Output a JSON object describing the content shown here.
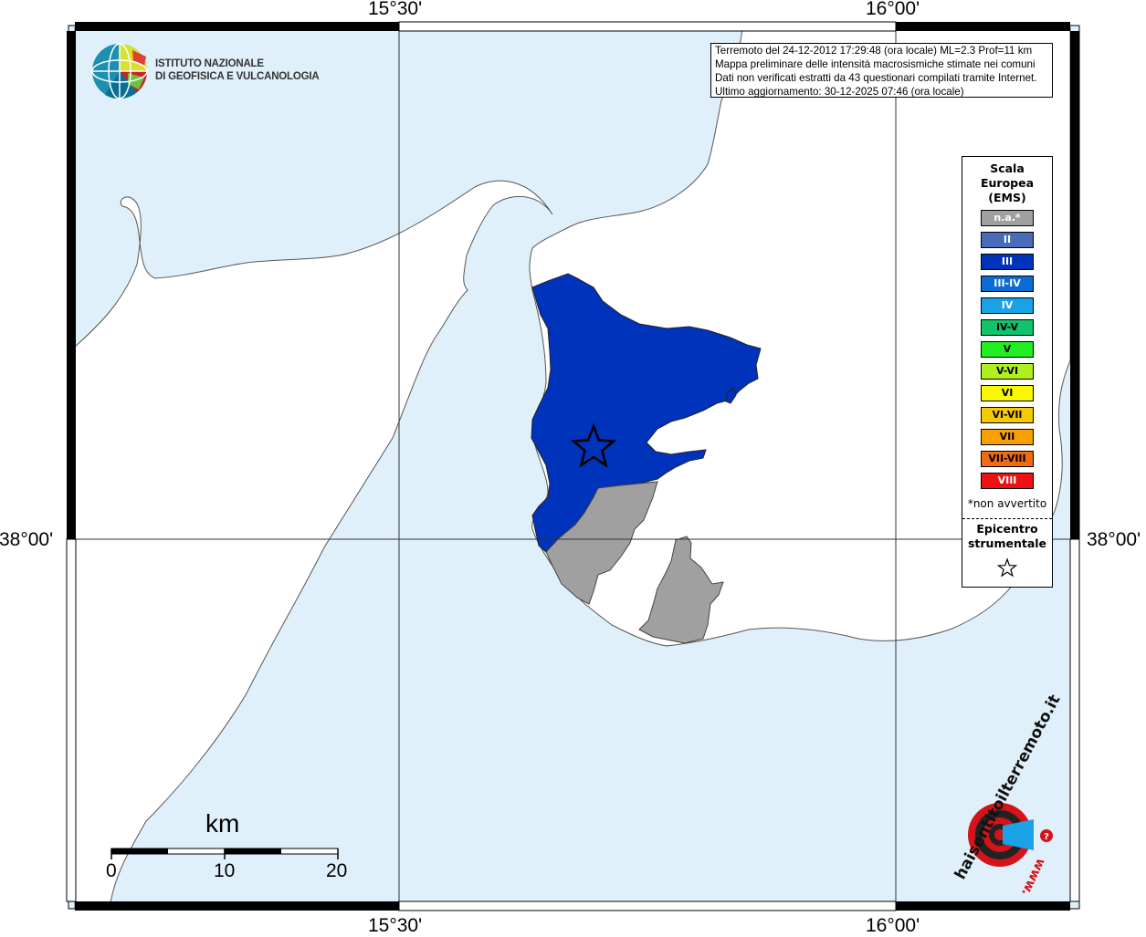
{
  "map": {
    "coords": {
      "lon_left": "15°30'",
      "lon_right": "16°00'",
      "lat": "38°00'"
    },
    "info": {
      "line1": "Terremoto del 24-12-2012 17:29:48 (ora locale) ML=2.3 Prof=11 km",
      "line2": "Mappa preliminare delle intensità macrosismiche stimate nei comuni",
      "line3": "Dati non verificati estratti da 43 questionari compilati tramite Internet.",
      "line4": "Ultimo aggiornamento: 30-12-2025 07:46 (ora locale)"
    },
    "institute": {
      "line1": "ISTITUTO NAZIONALE",
      "line2": "DI GEOFISICA E VULCANOLOGIA"
    },
    "legend": {
      "title1": "Scala",
      "title2": "Europea",
      "title3": "(EMS)",
      "items": [
        {
          "label": "n.a.*",
          "color": "#a0a0a0",
          "light": true
        },
        {
          "label": "II",
          "color": "#4a6bb8",
          "light": true
        },
        {
          "label": "III",
          "color": "#0033bb",
          "light": true
        },
        {
          "label": "III-IV",
          "color": "#0d6bd6",
          "light": true
        },
        {
          "label": "IV",
          "color": "#1aa1e6",
          "light": true
        },
        {
          "label": "IV-V",
          "color": "#11c36a",
          "light": false
        },
        {
          "label": "V",
          "color": "#22ee22",
          "light": false
        },
        {
          "label": "V-VI",
          "color": "#b0f020",
          "light": false
        },
        {
          "label": "VI",
          "color": "#f8f800",
          "light": false
        },
        {
          "label": "VI-VII",
          "color": "#f8c800",
          "light": false
        },
        {
          "label": "VII",
          "color": "#f8a000",
          "light": false
        },
        {
          "label": "VII-VIII",
          "color": "#f06a10",
          "light": false
        },
        {
          "label": "VIII",
          "color": "#ee1111",
          "light": true
        }
      ],
      "note": "*non avvertito",
      "epicenter1": "Epicentro",
      "epicenter2": "strumentale"
    },
    "scale_bar": {
      "unit": "km",
      "ticks": [
        "0",
        "10",
        "20"
      ]
    },
    "watermark": {
      "text": "haisentitoilterremoto.it",
      "www": "www."
    },
    "colors": {
      "sea": "#e0f0fb",
      "land": "#ffffff",
      "intensity_III": "#0033bb",
      "not_felt": "#a0a0a0"
    }
  }
}
